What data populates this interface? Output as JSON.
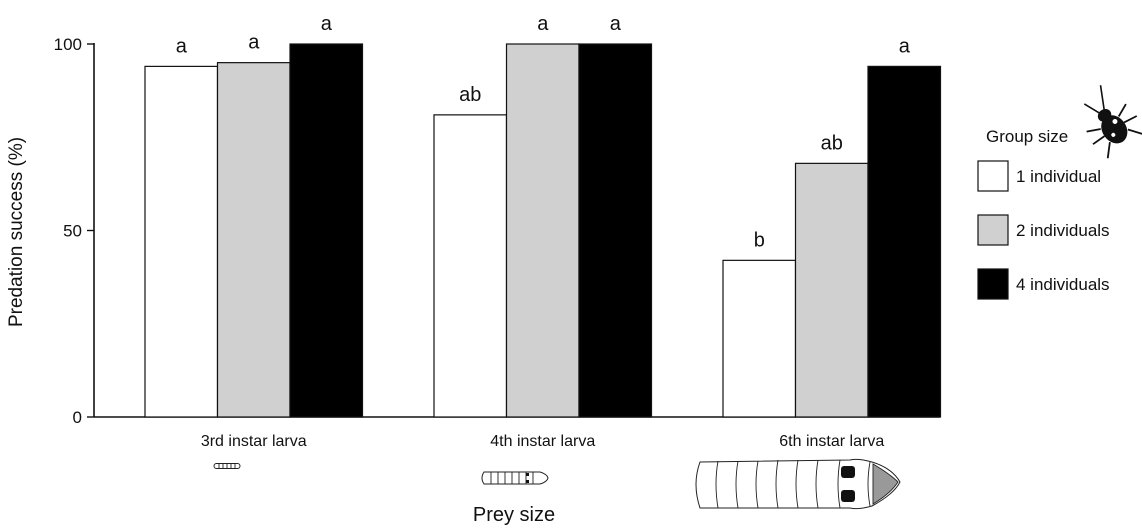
{
  "chart_data": {
    "type": "bar",
    "title": "",
    "xlabel": "Prey size",
    "ylabel": "Predation success (%)",
    "ylim": [
      0,
      100
    ],
    "yticks": [
      0,
      50,
      100
    ],
    "categories": [
      "3rd instar larva",
      "4th instar larva",
      "6th instar larva"
    ],
    "series": [
      {
        "name": "1 individual",
        "color": "#ffffff",
        "values": [
          94,
          81,
          42
        ],
        "labels": [
          "a",
          "ab",
          "b"
        ]
      },
      {
        "name": "2 individuals",
        "color": "#d0d0d0",
        "values": [
          95,
          100,
          68
        ],
        "labels": [
          "a",
          "a",
          "ab"
        ]
      },
      {
        "name": "4 individuals",
        "color": "#000000",
        "values": [
          100,
          100,
          94
        ],
        "labels": [
          "a",
          "a",
          "a"
        ]
      }
    ],
    "legend": {
      "title": "Group size",
      "placement": "right",
      "title_icon": "beetle-icon",
      "category_icons": [
        "larva-small-icon",
        "larva-medium-icon",
        "larva-large-icon"
      ]
    },
    "grid": false
  }
}
